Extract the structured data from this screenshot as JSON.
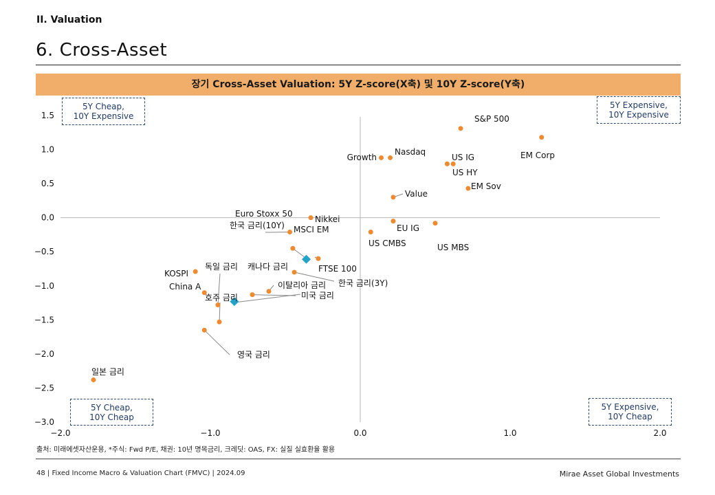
{
  "header": {
    "section": "II. Valuation",
    "title": "6. Cross-Asset"
  },
  "chart_data": {
    "type": "scatter",
    "title": "장기 Cross-Asset Valuation: 5Y Z-score(X축) 및 10Y Z-score(Y축)",
    "xlabel": "",
    "ylabel": "",
    "xlim": [
      -2.0,
      2.0
    ],
    "ylim": [
      -3.0,
      1.5
    ],
    "x_ticks": [
      "−2.0",
      "−1.0",
      "0.0",
      "1.0",
      "2.0"
    ],
    "y_ticks": [
      "1.5",
      "1.0",
      "0.5",
      "0.0",
      "−0.5",
      "−1.0",
      "−1.5",
      "−2.0",
      "−2.5",
      "−3.0"
    ],
    "x_tick_values": [
      -2.0,
      -1.0,
      0.0,
      1.0,
      2.0
    ],
    "y_tick_values": [
      1.5,
      1.0,
      0.5,
      0.0,
      -0.5,
      -1.0,
      -1.5,
      -2.0,
      -2.5,
      -3.0
    ],
    "grid": false,
    "colors": {
      "point": "#ee8a30",
      "highlight": "#23a3c9",
      "axis": "#b5b5b5",
      "leader": "#888888"
    },
    "points": [
      {
        "label": "S&P 500",
        "x": 0.67,
        "y": 1.31
      },
      {
        "label": "EM Corp",
        "x": 1.21,
        "y": 1.18
      },
      {
        "label": "Nasdaq",
        "x": 0.2,
        "y": 0.88
      },
      {
        "label": "Growth",
        "x": 0.14,
        "y": 0.88
      },
      {
        "label": "US IG",
        "x": 0.58,
        "y": 0.79
      },
      {
        "label": "US HY",
        "x": 0.62,
        "y": 0.79
      },
      {
        "label": "EM Sov",
        "x": 0.72,
        "y": 0.43
      },
      {
        "label": "Value",
        "x": 0.22,
        "y": 0.3
      },
      {
        "label": "Nikkei",
        "x": -0.33,
        "y": 0.0
      },
      {
        "label": "EU IG",
        "x": 0.22,
        "y": -0.05
      },
      {
        "label": "US MBS",
        "x": 0.5,
        "y": -0.08
      },
      {
        "label": "US CMBS",
        "x": 0.07,
        "y": -0.21
      },
      {
        "label": "한국 금리(10Y)",
        "x": -0.47,
        "y": -0.21
      },
      {
        "label": "MSCI EM",
        "x": -0.45,
        "y": -0.45
      },
      {
        "label": "Euro Stoxx 50",
        "x": -0.28,
        "y": -0.6
      },
      {
        "label": "FTSE 100",
        "x": -0.36,
        "y": -0.61,
        "highlight": true
      },
      {
        "label": "캐나다 금리",
        "x": -0.44,
        "y": -0.8
      },
      {
        "label": "KOSPI",
        "x": -1.1,
        "y": -0.79
      },
      {
        "label": "독일 금리",
        "x": -0.95,
        "y": -1.28
      },
      {
        "label": "한국 금리(3Y)",
        "x": -0.84,
        "y": -1.23,
        "highlight": true
      },
      {
        "label": "이탈리아 금리",
        "x": -0.61,
        "y": -1.08
      },
      {
        "label": "미국 금리",
        "x": -0.72,
        "y": -1.13
      },
      {
        "label": "China A",
        "x": -1.04,
        "y": -1.1
      },
      {
        "label": "호주 금리",
        "x": -0.94,
        "y": -1.53
      },
      {
        "label": "영국 금리",
        "x": -1.04,
        "y": -1.65
      },
      {
        "label": "일본 금리",
        "x": -1.78,
        "y": -2.38
      }
    ]
  },
  "corners": {
    "top_left": {
      "line1": "5Y Cheap,",
      "line2": "10Y Expensive"
    },
    "top_right": {
      "line1": "5Y Expensive,",
      "line2": "10Y Expensive"
    },
    "bottom_left": {
      "line1": "5Y Cheap,",
      "line2": "10Y Cheap"
    },
    "bottom_right": {
      "line1": "5Y Expensive,",
      "line2": "10Y Cheap"
    }
  },
  "source": "출처: 미래에셋자산운용, *주식: Fwd P/E, 채권: 10년 명목금리, 크레딧: OAS, FX: 실질 실효환율 활용",
  "footer": {
    "left": "48 | Fixed Income Macro & Valuation Chart (FMVC) | 2024.09",
    "right": "Mirae Asset Global Investments"
  }
}
